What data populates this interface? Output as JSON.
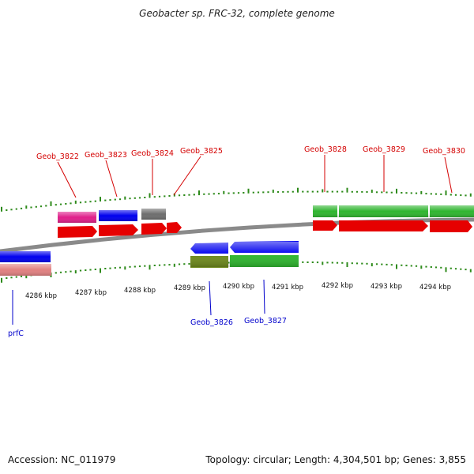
{
  "title": "Geobacter sp. FRC-32, complete genome",
  "footer": {
    "accession": "Accession: NC_011979",
    "summary": "Topology: circular; Length: 4,304,501 bp; Genes: 3,855"
  },
  "colors": {
    "backbone": "#8a8a8a",
    "tick": "#2d8a1a",
    "tag_top": "#d40000",
    "tag_bottom": "#0000cc",
    "cds": "#e60000",
    "gene_blue": "#0000ee",
    "gene_green": "#2fb52f",
    "gene_pink": "#e0208a",
    "gene_gray": "#6e6e6e",
    "gene_salmon": "#e08080",
    "gene_olive": "#6f8a1e"
  },
  "scale": {
    "labels": [
      "4286 kbp",
      "4287 kbp",
      "4288 kbp",
      "4289 kbp",
      "4290 kbp",
      "4291 kbp",
      "4292 kbp",
      "4293 kbp",
      "4294 kbp"
    ]
  },
  "gene_labels": {
    "top": [
      "Geob_3822",
      "Geob_3823",
      "Geob_3824",
      "Geob_3825",
      "Geob_3828",
      "Geob_3829",
      "Geob_3830"
    ],
    "bottom": [
      "prfC",
      "Geob_3826",
      "Geob_3827"
    ]
  }
}
